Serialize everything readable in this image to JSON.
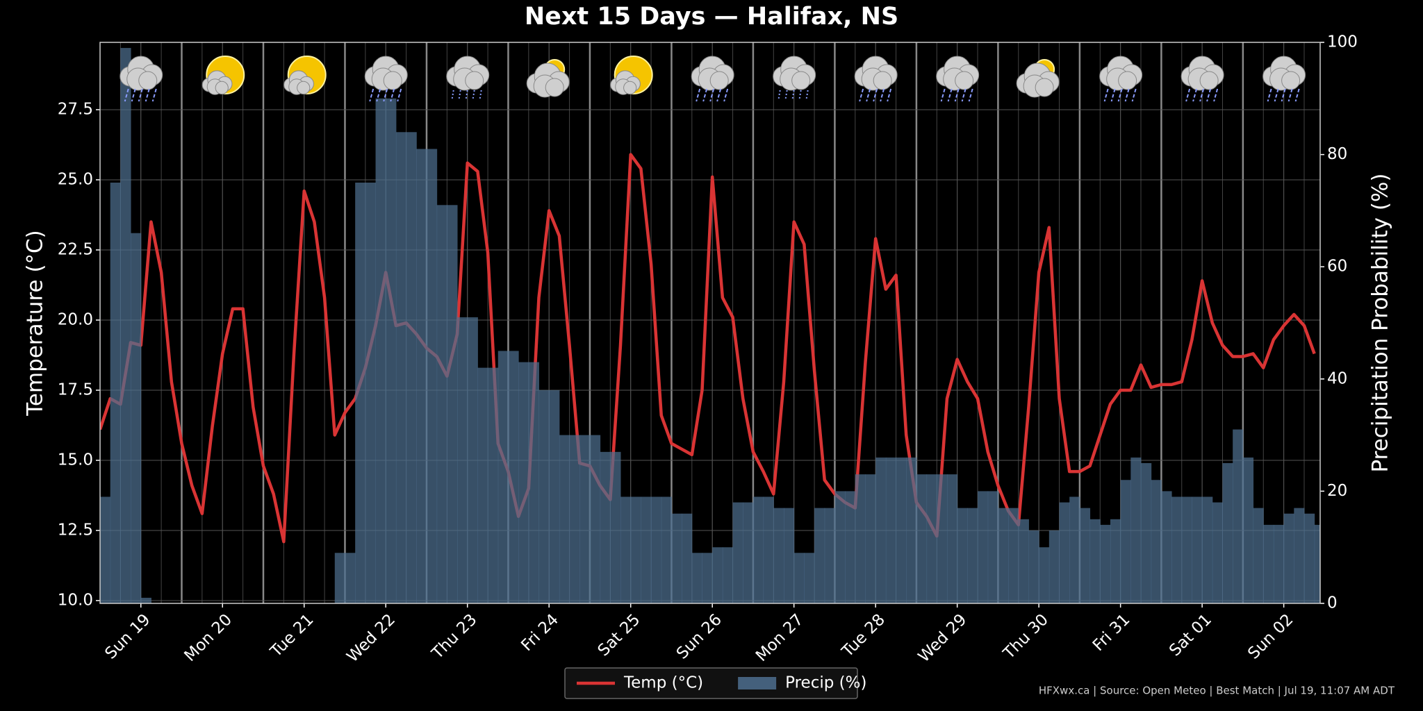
{
  "chart_data": {
    "type": "line",
    "title": "Next 15 Days — Halifax, NS",
    "y_label": "Temperature (°C)",
    "y2_label": "Precipitation Probability (%)",
    "footer": "HFXwx.ca | Source: Open Meteo | Best Match | Jul 19, 11:07 AM ADT",
    "xlim": [
      0,
      358.7
    ],
    "xticks": [
      {
        "value": 12,
        "label": "Sun 19"
      },
      {
        "value": 36,
        "label": "Mon 20"
      },
      {
        "value": 60,
        "label": "Tue 21"
      },
      {
        "value": 84,
        "label": "Wed 22"
      },
      {
        "value": 108,
        "label": "Thu 23"
      },
      {
        "value": 132,
        "label": "Fri 24"
      },
      {
        "value": 156,
        "label": "Sat 25"
      },
      {
        "value": 180,
        "label": "Sun 26"
      },
      {
        "value": 204,
        "label": "Mon 27"
      },
      {
        "value": 228,
        "label": "Tue 28"
      },
      {
        "value": 252,
        "label": "Wed 29"
      },
      {
        "value": 276,
        "label": "Thu 30"
      },
      {
        "value": 300,
        "label": "Fri 31"
      },
      {
        "value": 324,
        "label": "Sat 01"
      },
      {
        "value": 348,
        "label": "Sun 02"
      }
    ],
    "ylim": [
      9.9,
      29.9
    ],
    "yticks": [
      {
        "value": 10,
        "label": "10.0"
      },
      12.5,
      {
        "value": 15,
        "label": "15.0"
      },
      17.5,
      {
        "value": 20,
        "label": "20.0"
      },
      22.5,
      {
        "value": 25,
        "label": "25.0"
      },
      27.5
    ],
    "y2lim": [
      0,
      100
    ],
    "y2ticks": [
      0,
      20,
      40,
      60,
      80,
      100
    ],
    "grid": true,
    "legend": "bottom",
    "x": [
      0,
      3,
      6,
      9,
      12,
      15,
      18,
      21,
      24,
      27,
      30,
      33,
      36,
      39,
      42,
      45,
      48,
      51,
      54,
      57,
      60,
      63,
      66,
      69,
      72,
      75,
      78,
      81,
      84,
      87,
      90,
      93,
      96,
      99,
      102,
      105,
      108,
      111,
      114,
      117,
      120,
      123,
      126,
      129,
      132,
      135,
      138,
      141,
      144,
      147,
      150,
      153,
      156,
      159,
      162,
      165,
      168,
      171,
      174,
      177,
      180,
      183,
      186,
      189,
      192,
      195,
      198,
      201,
      204,
      207,
      210,
      213,
      216,
      219,
      222,
      225,
      228,
      231,
      234,
      237,
      240,
      243,
      246,
      249,
      252,
      255,
      258,
      261,
      264,
      267,
      270,
      273,
      276,
      279,
      282,
      285,
      288,
      291,
      294,
      297,
      300,
      303,
      306,
      309,
      312,
      315,
      318,
      321,
      324,
      327,
      330,
      333,
      336,
      339,
      342,
      345,
      348,
      351,
      354,
      357
    ],
    "series": [
      {
        "name": "Temp (°C)",
        "type": "line",
        "color": "#d93434",
        "values": [
          16.1,
          17.2,
          17.0,
          19.2,
          19.1,
          23.5,
          21.7,
          17.8,
          15.6,
          14.1,
          13.1,
          16.2,
          18.8,
          20.4,
          20.4,
          16.9,
          14.8,
          13.8,
          12.1,
          18.8,
          24.6,
          23.5,
          20.8,
          15.9,
          16.7,
          17.2,
          18.3,
          19.8,
          21.7,
          19.8,
          19.9,
          19.5,
          19.0,
          18.7,
          18.0,
          19.5,
          25.6,
          25.3,
          22.4,
          15.6,
          14.6,
          13.0,
          14.0,
          20.8,
          23.9,
          23.0,
          19.1,
          14.9,
          14.8,
          14.1,
          13.6,
          19.1,
          25.9,
          25.4,
          22.0,
          16.6,
          15.6,
          15.4,
          15.2,
          17.5,
          25.1,
          20.8,
          20.1,
          17.2,
          15.3,
          14.6,
          13.8,
          17.8,
          23.5,
          22.7,
          18.2,
          14.3,
          13.8,
          13.5,
          13.3,
          18.5,
          22.9,
          21.1,
          21.6,
          15.9,
          13.5,
          13.0,
          12.3,
          17.2,
          18.6,
          17.8,
          17.2,
          15.3,
          14.1,
          13.2,
          12.7,
          16.9,
          21.7,
          23.3,
          17.2,
          14.6,
          14.6,
          14.8,
          15.9,
          17.0,
          17.5,
          17.5,
          18.4,
          17.6,
          17.7,
          17.7,
          17.8,
          19.3,
          21.4,
          19.9,
          19.1,
          18.7,
          18.7,
          18.8,
          18.3,
          19.3,
          19.8,
          20.2,
          19.8,
          18.8
        ]
      },
      {
        "name": "Precip (%)",
        "type": "bar",
        "axis": "y2",
        "color": "#4d6f8f",
        "values": [
          19,
          75,
          99,
          66,
          1,
          0,
          0,
          0,
          0,
          0,
          0,
          0,
          0,
          0,
          0,
          0,
          0,
          0,
          0,
          0,
          0,
          0,
          0,
          9,
          9,
          75,
          75,
          90,
          90,
          84,
          84,
          81,
          81,
          71,
          71,
          51,
          51,
          42,
          42,
          45,
          45,
          43,
          43,
          38,
          38,
          30,
          30,
          30,
          30,
          27,
          27,
          19,
          19,
          19,
          19,
          19,
          16,
          16,
          9,
          9,
          10,
          10,
          18,
          18,
          19,
          19,
          17,
          17,
          9,
          9,
          17,
          17,
          20,
          20,
          23,
          23,
          26,
          26,
          26,
          26,
          23,
          23,
          23,
          23,
          17,
          17,
          20,
          20,
          17,
          17,
          15,
          13,
          10,
          13,
          18,
          19,
          17,
          15,
          14,
          15,
          22,
          26,
          25,
          22,
          20,
          19,
          19,
          19,
          19,
          18,
          25,
          31,
          26,
          17,
          14,
          14,
          16,
          17,
          16,
          14
        ]
      }
    ]
  }
}
